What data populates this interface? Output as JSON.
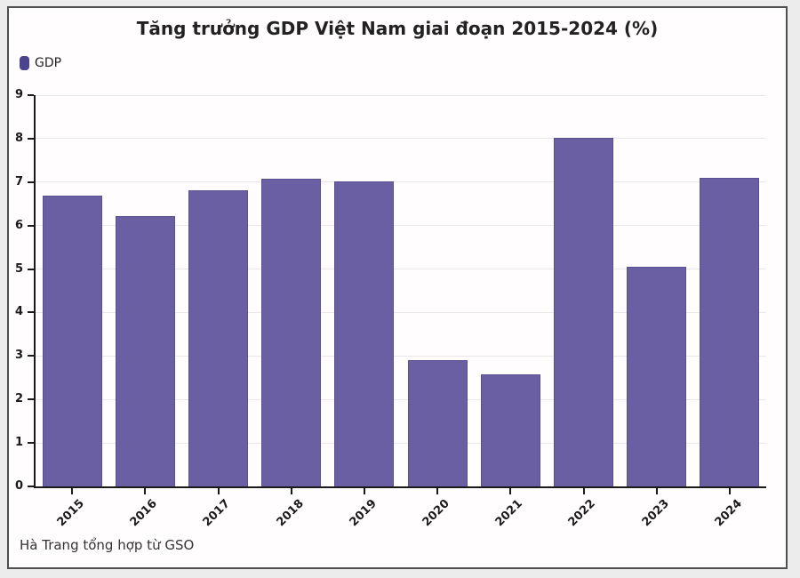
{
  "page": {
    "background_color": "#ececec",
    "card_background": "#fffdfe",
    "card_border_color": "#4f4f4f"
  },
  "source_note": "Hà Trang tổng hợp từ GSO",
  "chart_data": {
    "type": "bar",
    "title": "Tăng trưởng GDP Việt Nam giai đoạn 2015-2024 (%)",
    "categories": [
      "2015",
      "2016",
      "2017",
      "2018",
      "2019",
      "2020",
      "2021",
      "2022",
      "2023",
      "2024"
    ],
    "series": [
      {
        "name": "GDP",
        "values": [
          6.68,
          6.21,
          6.81,
          7.08,
          7.02,
          2.91,
          2.58,
          8.02,
          5.05,
          7.09
        ]
      }
    ],
    "xlabel": "",
    "ylabel": "",
    "ylim": [
      0,
      9
    ],
    "ytick_step": 1,
    "grid": true,
    "legend_position": "top-left",
    "bar_color": "#6a5fa2",
    "bar_border_color": "#59508f",
    "legend_swatch_color": "#4c4390",
    "gridline_color": "#ece6ea",
    "axis_color": "#1a1a1a",
    "x_label_rotation_deg": -45
  }
}
